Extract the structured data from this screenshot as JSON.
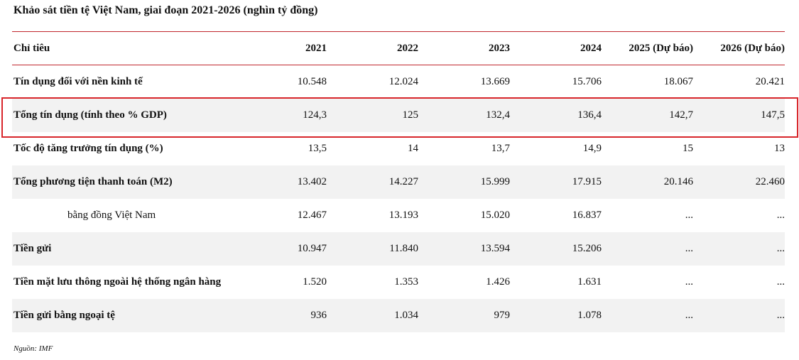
{
  "title": "Khảo sát tiền tệ Việt Nam, giai đoạn 2021-2026  (nghìn tỷ đồng)",
  "table": {
    "header": [
      "Chỉ tiêu",
      "2021",
      "2022",
      "2023",
      "2024",
      "2025 (Dự báo)",
      "2026 (Dự báo)"
    ],
    "rows": [
      {
        "label": "Tín dụng đối với nền kinh tế",
        "values": [
          "10.548",
          "12.024",
          "13.669",
          "15.706",
          "18.067",
          "20.421"
        ]
      },
      {
        "label": "Tổng tín dụng (tính theo % GDP)",
        "values": [
          "124,3",
          "125",
          "132,4",
          "136,4",
          "142,7",
          "147,5"
        ]
      },
      {
        "label": "Tốc độ tăng trưởng tín dụng (%)",
        "values": [
          "13,5",
          "14",
          "13,7",
          "14,9",
          "15",
          "13"
        ]
      },
      {
        "label": "Tổng phương tiện thanh toán (M2)",
        "values": [
          "13.402",
          "14.227",
          "15.999",
          "17.915",
          "20.146",
          "22.460"
        ]
      },
      {
        "label": "bằng đồng Việt Nam",
        "values": [
          "12.467",
          "13.193",
          "15.020",
          "16.837",
          "...",
          "..."
        ]
      },
      {
        "label": "Tiền gửi",
        "values": [
          "10.947",
          "11.840",
          "13.594",
          "15.206",
          "...",
          "..."
        ]
      },
      {
        "label": "Tiền mặt lưu thông ngoài hệ thống ngân hàng",
        "values": [
          "1.520",
          "1.353",
          "1.426",
          "1.631",
          "...",
          "..."
        ]
      },
      {
        "label": "Tiền gửi bằng ngoại tệ",
        "values": [
          "936",
          "1.034",
          "979",
          "1.078",
          "...",
          "..."
        ]
      }
    ]
  },
  "source": "Nguồn: IMF"
}
